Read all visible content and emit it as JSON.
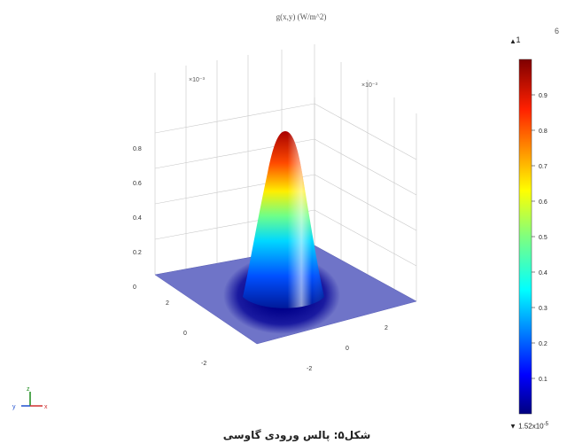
{
  "chart_data": {
    "type": "surface3d",
    "title": "g(x,y) (W/m^2)",
    "description_function": "gaussian",
    "peak_value": 1.0,
    "x_range_label": "×10⁻³",
    "y_range_label": "×10⁻³",
    "z_ticks": [
      "0",
      "0.2",
      "0.4",
      "0.6",
      "0.8"
    ],
    "x_ticks": [
      "2",
      "0",
      "-2"
    ],
    "y_ticks": [
      "2",
      "0",
      "-2"
    ],
    "colorbar": {
      "max_label": "1",
      "min_label": "1.52x10",
      "min_exponent": "-5",
      "ticks": [
        "0.9",
        "0.8",
        "0.7",
        "0.6",
        "0.5",
        "0.4",
        "0.3",
        "0.2",
        "0.1"
      ]
    },
    "colormap": [
      "#00007f",
      "#0000ff",
      "#007fff",
      "#00ffff",
      "#7fff7f",
      "#ffff00",
      "#ff7f00",
      "#ff0000",
      "#7f0000"
    ],
    "floor_color": "#6f74c8"
  },
  "caption": "شکل۵: پالس ورودی گاوسی",
  "corner_glyph": "6",
  "triad": {
    "x": "x",
    "y": "y",
    "z": "z"
  }
}
